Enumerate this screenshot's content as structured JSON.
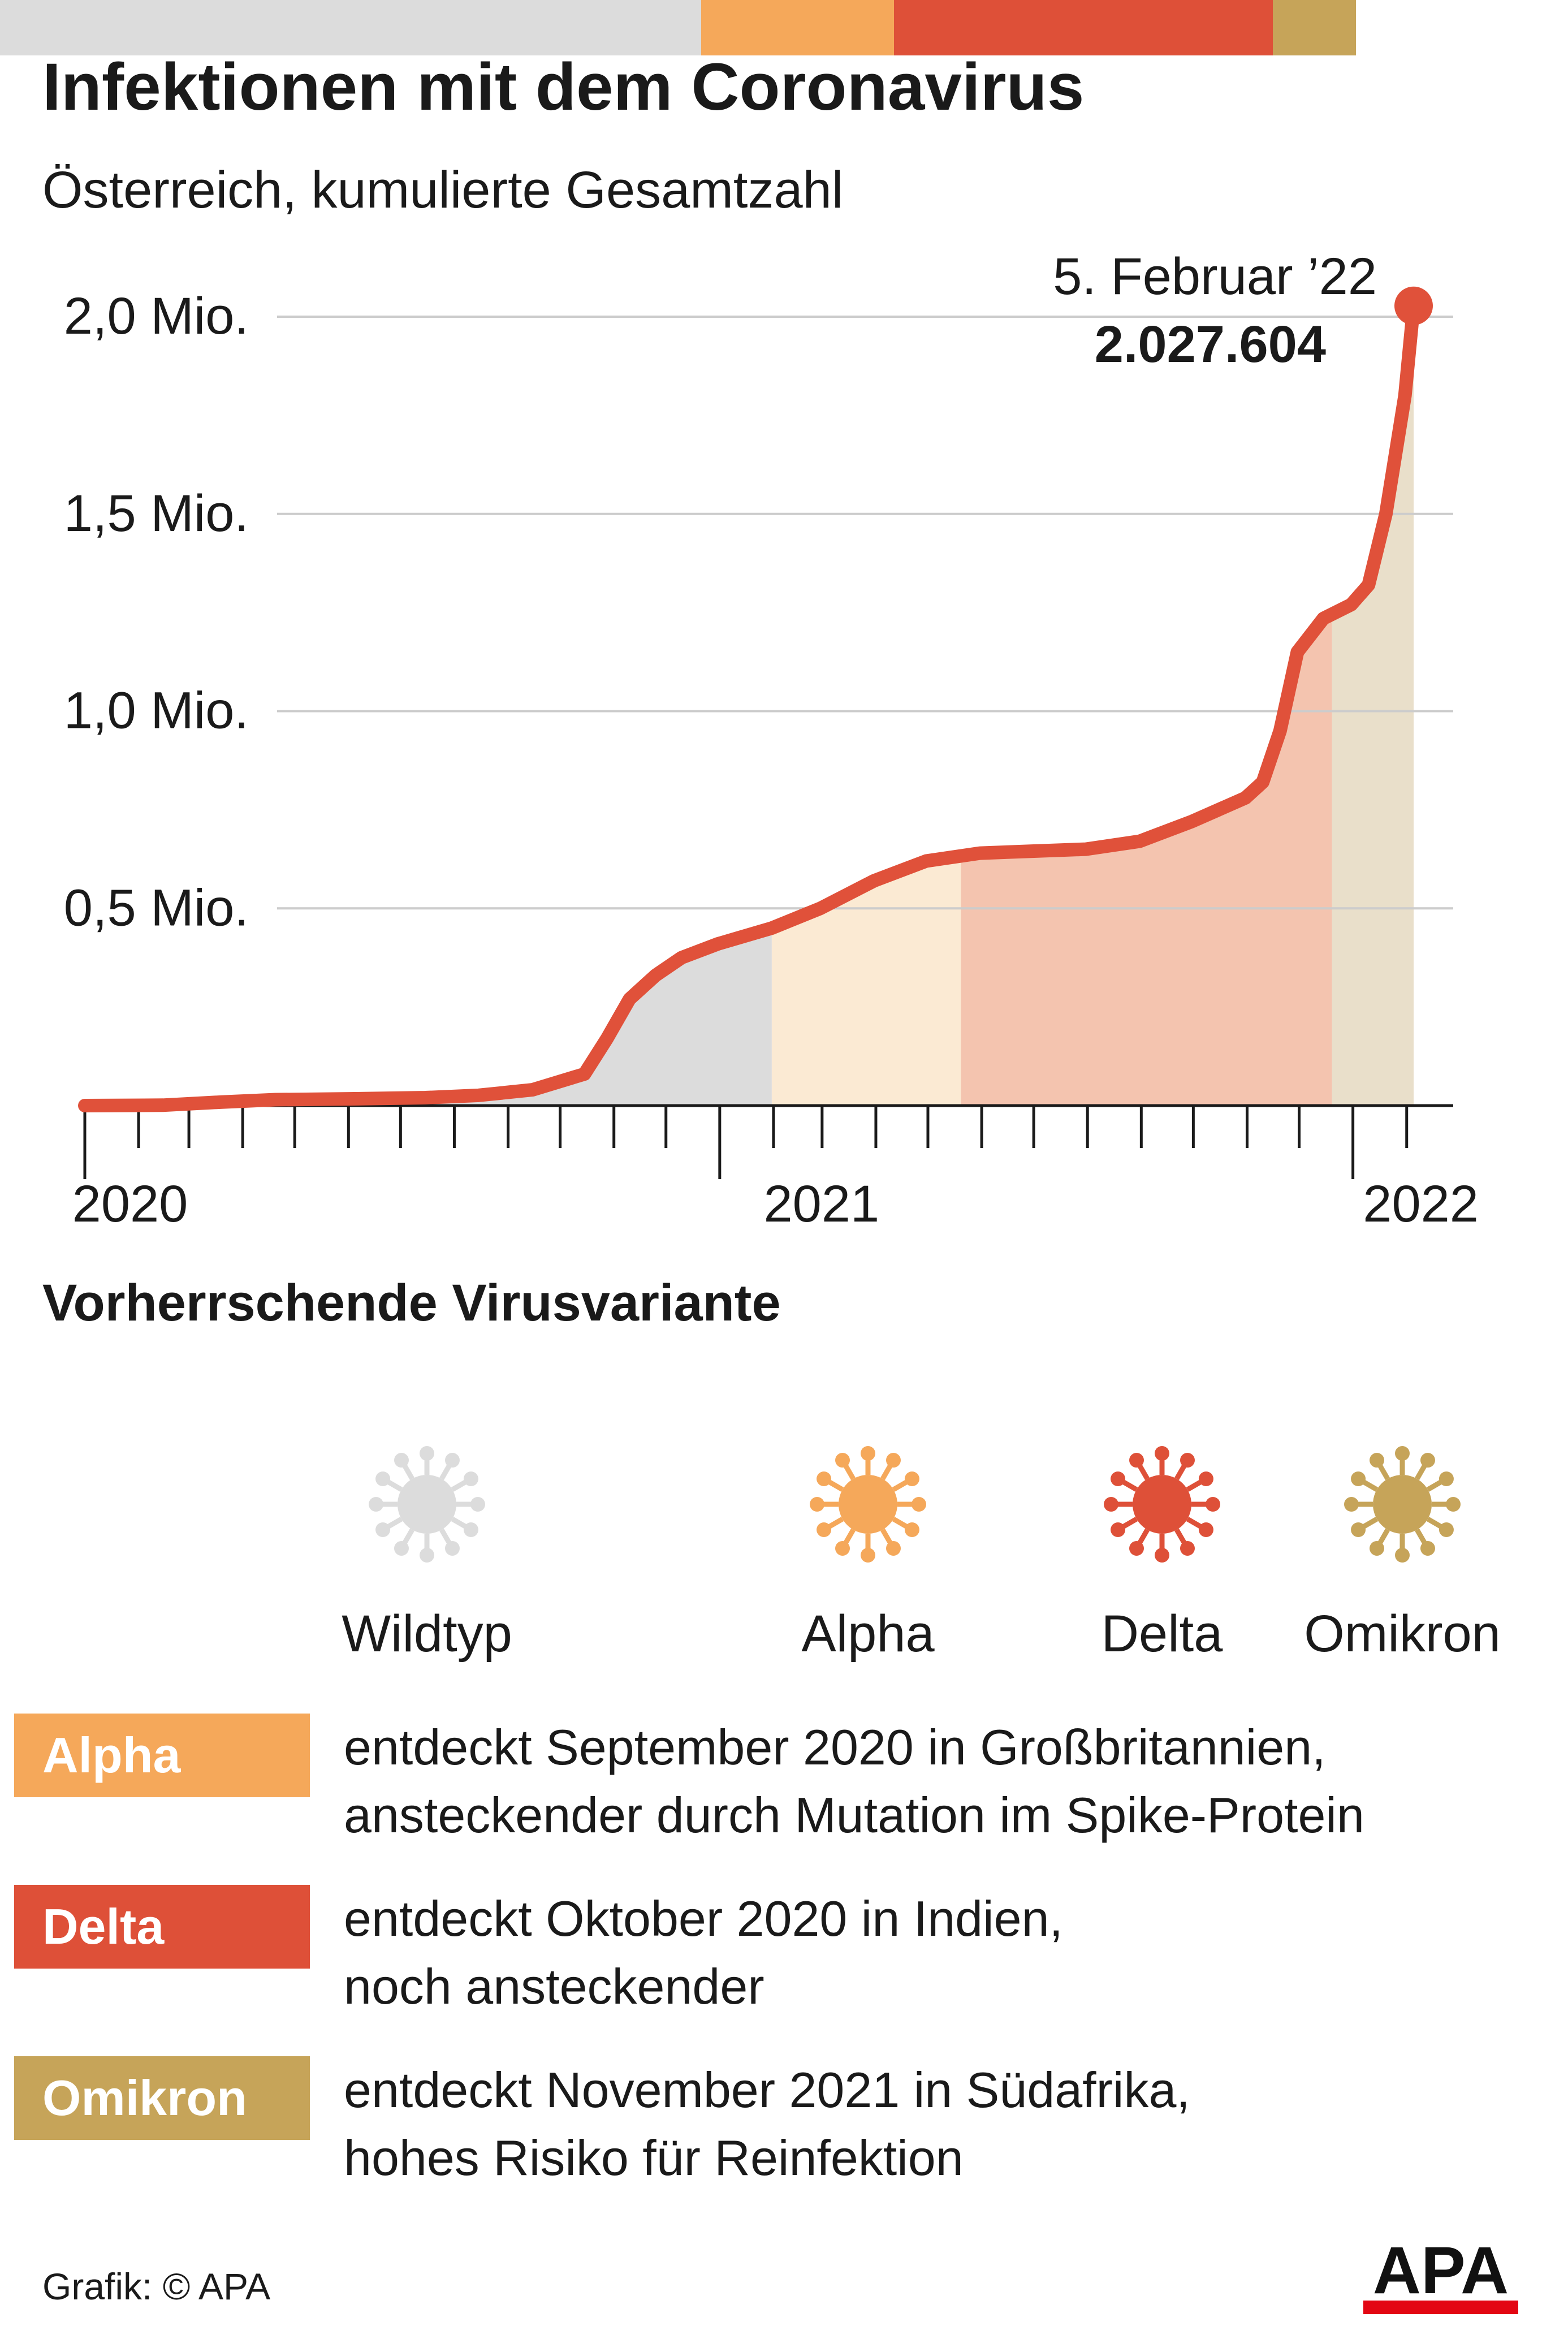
{
  "title": "Infektionen mit dem Coronavirus",
  "subtitle": "Österreich, kumulierte Gesamtzahl",
  "chart_data": {
    "type": "area",
    "title": "Infektionen mit dem Coronavirus",
    "subtitle": "Österreich, kumulierte Gesamtzahl",
    "xlabel": "",
    "ylabel": "",
    "x_unit": "date",
    "ylim": [
      0,
      2000000
    ],
    "y_ticks": [
      {
        "value": 500000,
        "label": "0,5 Mio."
      },
      {
        "value": 1000000,
        "label": "1,0 Mio."
      },
      {
        "value": 1500000,
        "label": "1,5 Mio."
      },
      {
        "value": 2000000,
        "label": "2,0 Mio."
      }
    ],
    "x_ticks": [
      {
        "value": "2020-01-01",
        "label": "2020"
      },
      {
        "value": "2021-01-01",
        "label": "2021"
      },
      {
        "value": "2022-01-01",
        "label": "2022"
      }
    ],
    "grid": true,
    "series": [
      {
        "color": "#e0513a",
        "x": [
          "2020-01-01",
          "2020-02-15",
          "2020-03-20",
          "2020-04-20",
          "2020-06-01",
          "2020-07-15",
          "2020-08-15",
          "2020-09-15",
          "2020-10-15",
          "2020-10-28",
          "2020-11-10",
          "2020-11-25",
          "2020-12-10",
          "2020-12-31",
          "2021-01-31",
          "2021-02-28",
          "2021-03-31",
          "2021-04-30",
          "2021-05-31",
          "2021-06-30",
          "2021-07-31",
          "2021-08-31",
          "2021-09-30",
          "2021-10-31",
          "2021-11-10",
          "2021-11-20",
          "2021-11-30",
          "2021-12-15",
          "2021-12-31",
          "2022-01-10",
          "2022-01-20",
          "2022-01-31",
          "2022-02-05"
        ],
        "values": [
          0,
          1000,
          9000,
          15000,
          17000,
          20000,
          26000,
          40000,
          80000,
          170000,
          270000,
          330000,
          375000,
          410000,
          450000,
          500000,
          570000,
          620000,
          640000,
          645000,
          650000,
          670000,
          720000,
          780000,
          820000,
          950000,
          1150000,
          1235000,
          1270000,
          1320000,
          1500000,
          1800000,
          2027604
        ]
      }
    ],
    "shaded_periods": [
      {
        "start": "2020-01-01",
        "end": "2021-01-31",
        "color": "#dcdcdc"
      },
      {
        "start": "2021-01-31",
        "end": "2021-05-20",
        "color": "#fbead3"
      },
      {
        "start": "2021-05-20",
        "end": "2021-12-20",
        "color": "#f4c4af"
      },
      {
        "start": "2021-12-20",
        "end": "2022-02-05",
        "color": "#e9dfca"
      }
    ],
    "annotation": {
      "x": "2022-02-05",
      "value": 2027604,
      "date_label": "5. Februar ’22",
      "value_label": "2.027.604"
    }
  },
  "variants": {
    "heading": "Vorherrschende Virusvariante",
    "bar": [
      {
        "name": "Wildtyp",
        "start": "2020-01-01",
        "end": "2021-01-31",
        "color": "#dcdcdc"
      },
      {
        "name": "Alpha",
        "start": "2021-01-31",
        "end": "2021-05-20",
        "color": "#f5a85a"
      },
      {
        "name": "Delta",
        "start": "2021-05-20",
        "end": "2021-12-20",
        "color": "#de5038"
      },
      {
        "name": "Omikron",
        "start": "2021-12-20",
        "end": "2022-02-05",
        "color": "#c6a459"
      }
    ],
    "legend": [
      {
        "label": "Wildtyp",
        "color": "#dcdcdc",
        "icon": "virus-icon"
      },
      {
        "label": "Alpha",
        "color": "#f5a85a",
        "icon": "virus-icon"
      },
      {
        "label": "Delta",
        "color": "#de5038",
        "icon": "virus-icon"
      },
      {
        "label": "Omikron",
        "color": "#c6a459",
        "icon": "virus-icon"
      }
    ]
  },
  "info": [
    {
      "badge": "Alpha",
      "color": "#f5a85a",
      "line1": "entdeckt September 2020 in Großbritannien,",
      "line2": "ansteckender durch Mutation im Spike-Protein"
    },
    {
      "badge": "Delta",
      "color": "#de5038",
      "line1": "entdeckt Oktober 2020 in Indien,",
      "line2": "noch ansteckender"
    },
    {
      "badge": "Omikron",
      "color": "#c6a459",
      "line1": "entdeckt November 2021 in Südafrika,",
      "line2": "hohes Risiko für Reinfektion"
    }
  ],
  "credit": "Grafik: © APA",
  "logo_text": "APA"
}
